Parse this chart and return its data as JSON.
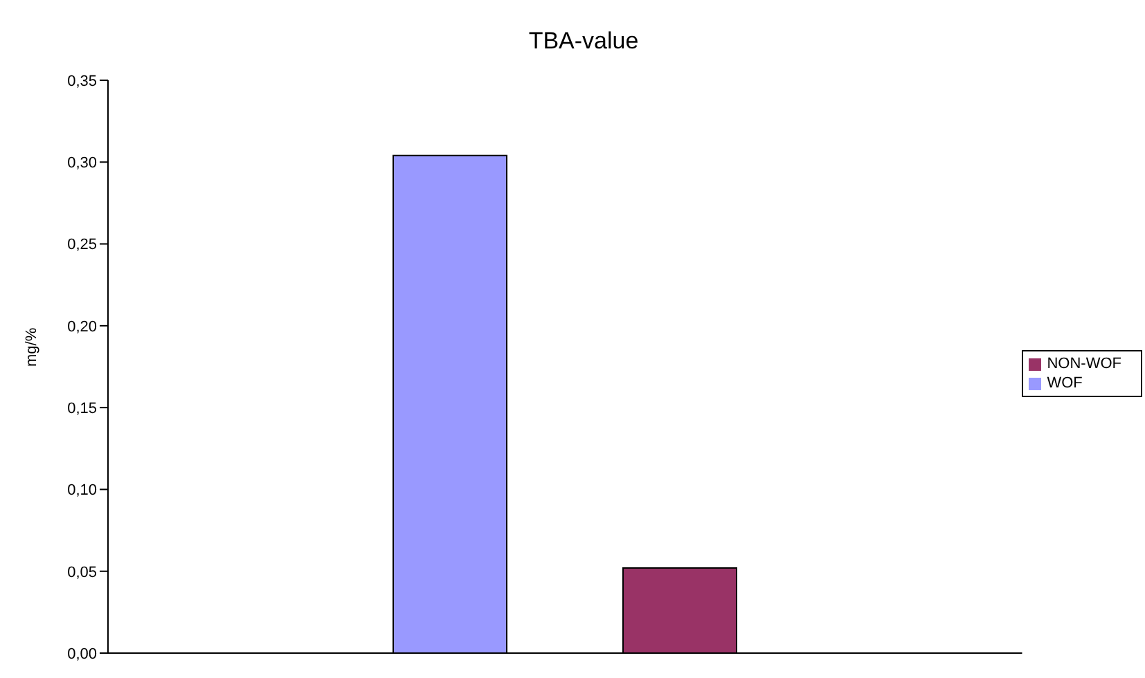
{
  "chart_data": {
    "type": "bar",
    "title": "TBA-value",
    "ylabel": "mg/%",
    "categories": [
      null
    ],
    "series": [
      {
        "name": "WOF",
        "color": "#9999ff",
        "values": [
          0.304
        ]
      },
      {
        "name": "NON-WOF",
        "color": "#993366",
        "values": [
          0.052
        ]
      }
    ],
    "ylim": [
      0,
      0.35
    ],
    "yticks": [
      {
        "value": 0,
        "label": "0,00"
      },
      {
        "value": 0.05,
        "label": "0,05"
      },
      {
        "value": 0.1,
        "label": "0,10"
      },
      {
        "value": 0.15,
        "label": "0,15"
      },
      {
        "value": 0.2,
        "label": "0,20"
      },
      {
        "value": 0.25,
        "label": "0,25"
      },
      {
        "value": 0.3,
        "label": "0,30"
      },
      {
        "value": 0.35,
        "label": "0,35"
      }
    ],
    "grid": false,
    "legend": "right"
  }
}
